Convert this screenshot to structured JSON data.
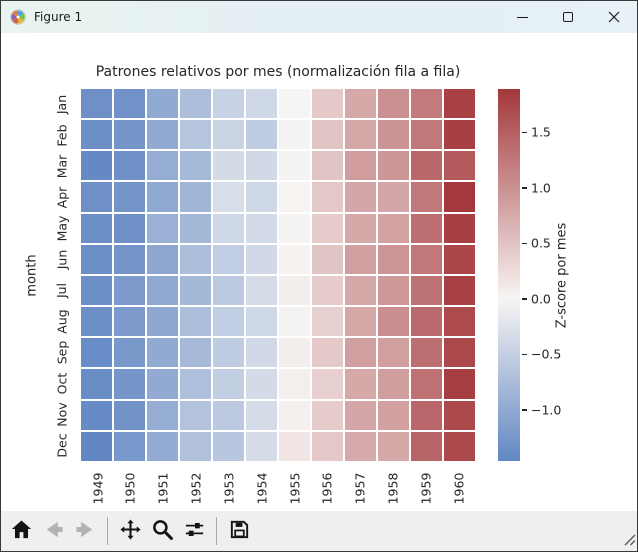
{
  "window": {
    "title": "Figure 1",
    "controls": [
      {
        "name": "minimize",
        "icon": "minimize-icon"
      },
      {
        "name": "maximize",
        "icon": "maximize-icon"
      },
      {
        "name": "close",
        "icon": "close-icon"
      }
    ]
  },
  "chart_data": {
    "type": "heatmap",
    "title": "Patrones relativos por mes (normalización fila a fila)",
    "ylabel": "month",
    "colorbar_label": "Z-score por mes",
    "x_categories": [
      "1949",
      "1950",
      "1951",
      "1952",
      "1953",
      "1954",
      "1955",
      "1956",
      "1957",
      "1958",
      "1959",
      "1960"
    ],
    "y_categories": [
      "Jan",
      "Feb",
      "Mar",
      "Apr",
      "May",
      "Jun",
      "Jul",
      "Aug",
      "Sep",
      "Oct",
      "Nov",
      "Dec"
    ],
    "values": [
      [
        -1.34,
        -1.31,
        -1.0,
        -0.73,
        -0.47,
        -0.39,
        0.0,
        0.44,
        0.76,
        1.02,
        1.22,
        1.81
      ],
      [
        -1.36,
        -1.27,
        -0.99,
        -0.64,
        -0.45,
        -0.55,
        -0.02,
        0.49,
        0.77,
        0.97,
        1.25,
        1.82
      ],
      [
        -1.43,
        -1.34,
        -0.96,
        -0.8,
        -0.35,
        -0.37,
        -0.03,
        0.49,
        0.89,
        0.95,
        1.41,
        1.55
      ],
      [
        -1.34,
        -1.28,
        -1.01,
        -0.84,
        -0.31,
        -0.39,
        0.02,
        0.45,
        0.79,
        0.79,
        1.25,
        1.89
      ],
      [
        -1.37,
        -1.34,
        -0.91,
        -0.81,
        -0.39,
        -0.34,
        -0.02,
        0.42,
        0.76,
        0.83,
        1.35,
        1.82
      ],
      [
        -1.37,
        -1.27,
        -1.04,
        -0.73,
        -0.53,
        -0.37,
        0.03,
        0.49,
        0.86,
        0.96,
        1.25,
        1.74
      ],
      [
        -1.35,
        -1.21,
        -1.01,
        -0.81,
        -0.58,
        -0.33,
        0.08,
        0.41,
        0.76,
        0.93,
        1.31,
        1.8
      ],
      [
        -1.36,
        -1.21,
        -1.02,
        -0.73,
        -0.53,
        -0.39,
        -0.03,
        0.36,
        0.78,
        1.03,
        1.39,
        1.71
      ],
      [
        -1.4,
        -1.22,
        -1.0,
        -0.79,
        -0.55,
        -0.37,
        0.08,
        0.44,
        0.86,
        0.86,
        1.35,
        1.73
      ],
      [
        -1.39,
        -1.26,
        -0.99,
        -0.71,
        -0.52,
        -0.35,
        0.07,
        0.37,
        0.76,
        0.87,
        1.32,
        1.83
      ],
      [
        -1.41,
        -1.3,
        -0.95,
        -0.67,
        -0.58,
        -0.33,
        0.05,
        0.42,
        0.79,
        0.85,
        1.42,
        1.72
      ],
      [
        -1.46,
        -1.23,
        -0.97,
        -0.69,
        -0.62,
        -0.33,
        0.16,
        0.45,
        0.75,
        0.76,
        1.45,
        1.72
      ]
    ],
    "vmin": -1.46,
    "vmax": 1.89,
    "colorbar_tick_values": [
      1.5,
      1.0,
      0.5,
      0.0,
      -0.5,
      -1.0
    ],
    "colorbar_tick_labels": [
      "1.5",
      "1.0",
      "0.5",
      "0.0",
      "−0.5",
      "−1.0"
    ],
    "colormap": {
      "low": "#6287c3",
      "mid": "#f7f5f3",
      "high": "#a4383c"
    },
    "legend_position": "right",
    "grid": false
  },
  "toolbar": {
    "buttons": [
      {
        "name": "home",
        "icon": "home-icon",
        "disabled": false
      },
      {
        "name": "back",
        "icon": "back-icon",
        "disabled": true
      },
      {
        "name": "forward",
        "icon": "forward-icon",
        "disabled": true
      },
      {
        "name": "separator"
      },
      {
        "name": "pan",
        "icon": "pan-icon",
        "disabled": false
      },
      {
        "name": "zoom",
        "icon": "zoom-icon",
        "disabled": false
      },
      {
        "name": "configure-subplots",
        "icon": "configure-subplots-icon",
        "disabled": false
      },
      {
        "name": "separator"
      },
      {
        "name": "save",
        "icon": "save-icon",
        "disabled": false
      }
    ]
  }
}
